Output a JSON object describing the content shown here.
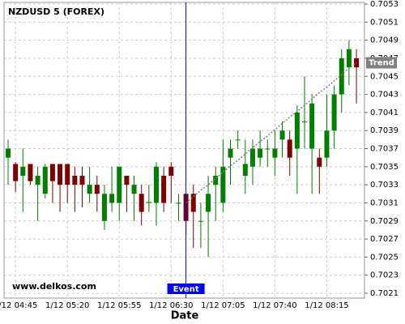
{
  "chart_data": {
    "type": "candlestick",
    "title": "NZDUSD 5 (FOREX)",
    "watermark": "www.delkos.com",
    "x_label": "Date",
    "categories": [
      null,
      "1/12 04:45",
      null,
      null,
      null,
      null,
      null,
      null,
      "1/12 05:20",
      null,
      null,
      null,
      null,
      null,
      null,
      "1/12 05:55",
      null,
      null,
      null,
      null,
      null,
      null,
      "1/12 06:30",
      null,
      null,
      null,
      null,
      null,
      null,
      "1/12 07:05",
      null,
      null,
      null,
      null,
      null,
      null,
      "1/12 07:40",
      null,
      null,
      null,
      null,
      null,
      null,
      "1/12 08:15",
      null,
      null,
      null,
      null
    ],
    "open": [
      0.7036,
      0.70353,
      0.7034,
      0.70353,
      0.7033,
      0.7032,
      0.70353,
      0.70353,
      0.70353,
      0.7034,
      0.7034,
      0.7032,
      0.7033,
      0.7029,
      0.7031,
      0.7031,
      0.7034,
      0.7032,
      0.7032,
      0.7031,
      0.7031,
      0.7034,
      0.7035,
      0.7031,
      0.7032,
      0.7032,
      0.7029,
      0.703,
      0.7033,
      0.7031,
      0.7036,
      0.7038,
      0.7034,
      0.7035,
      0.7036,
      0.7037,
      0.7036,
      0.7038,
      0.7038,
      0.7037,
      0.704,
      0.7037,
      0.7036,
      0.7036,
      0.7039,
      0.7043,
      0.7046,
      0.7047
    ],
    "high": [
      0.7038,
      0.70355,
      0.7037,
      0.70353,
      0.7035,
      0.70353,
      0.70353,
      0.70353,
      0.70353,
      0.7035,
      0.7035,
      0.7035,
      0.7034,
      0.7033,
      0.7035,
      0.7035,
      0.7034,
      0.7034,
      0.7033,
      0.7033,
      0.70355,
      0.7035,
      0.70355,
      0.7032,
      0.7032,
      0.7033,
      0.7031,
      0.7034,
      0.7035,
      0.7038,
      0.7038,
      0.7039,
      0.7038,
      0.7038,
      0.7039,
      0.7038,
      0.7039,
      0.704,
      0.7039,
      0.70418,
      0.7045,
      0.7043,
      0.7037,
      0.7043,
      0.7044,
      0.7048,
      0.7049,
      0.7048
    ],
    "low": [
      0.7033,
      0.70322,
      0.703,
      0.7033,
      0.7029,
      0.70315,
      0.7031,
      0.703,
      0.7031,
      0.703,
      0.70305,
      0.7031,
      0.703,
      0.7028,
      0.703,
      0.7029,
      0.703,
      0.7029,
      0.70285,
      0.703,
      0.70285,
      0.703,
      0.7031,
      0.7029,
      0.70275,
      0.7026,
      0.7026,
      0.7025,
      0.7029,
      0.703,
      0.7033,
      0.7037,
      0.7032,
      0.7033,
      0.7035,
      0.7035,
      0.7034,
      0.7036,
      0.7034,
      0.7032,
      0.7037,
      0.7032,
      0.7032,
      0.7035,
      0.7037,
      0.7041,
      0.7044,
      0.7042
    ],
    "close": [
      0.7037,
      0.70334,
      0.7035,
      0.70334,
      0.7034,
      0.7035,
      0.70334,
      0.7033,
      0.7033,
      0.7033,
      0.7033,
      0.7033,
      0.7032,
      0.7032,
      0.7032,
      0.7035,
      0.7033,
      0.7033,
      0.703,
      0.70311,
      0.7035,
      0.7031,
      0.7034,
      0.7031,
      0.7029,
      0.703,
      0.7029,
      0.7032,
      0.7034,
      0.7035,
      0.7037,
      0.7038,
      0.70353,
      0.7037,
      0.7037,
      0.7037,
      0.7037,
      0.7039,
      0.7036,
      0.7041,
      0.704,
      0.7042,
      0.7035,
      0.7039,
      0.7043,
      0.7047,
      0.7048,
      0.7046
    ],
    "up_color": "#008000",
    "down_color": "#800000",
    "trend": {
      "label": "Trend",
      "color": "#808080",
      "values": [
        null,
        null,
        null,
        null,
        null,
        null,
        null,
        null,
        null,
        null,
        null,
        null,
        null,
        null,
        null,
        null,
        null,
        null,
        null,
        null,
        null,
        null,
        null,
        null,
        0.7031,
        0.70317,
        0.70324,
        0.7033,
        0.70337,
        0.70344,
        0.70351,
        0.70357,
        0.70364,
        0.70371,
        0.70378,
        0.70384,
        0.70391,
        0.70398,
        0.70405,
        0.70411,
        0.70418,
        0.70425,
        0.70432,
        0.70438,
        0.70445,
        0.70452,
        0.70459,
        0.70465
      ]
    },
    "event": {
      "label": "Event",
      "category": 24,
      "color": "#0000ff"
    },
    "ylim": [
      0.7021,
      0.7053
    ],
    "yticks": [
      0.7021,
      0.7023,
      0.7025,
      0.7027,
      0.7029,
      0.7031,
      0.7033,
      0.7035,
      0.7037,
      0.7039,
      0.7041,
      0.7043,
      0.7045,
      0.7047,
      0.7049,
      0.7051,
      0.7053
    ],
    "grid": true
  }
}
